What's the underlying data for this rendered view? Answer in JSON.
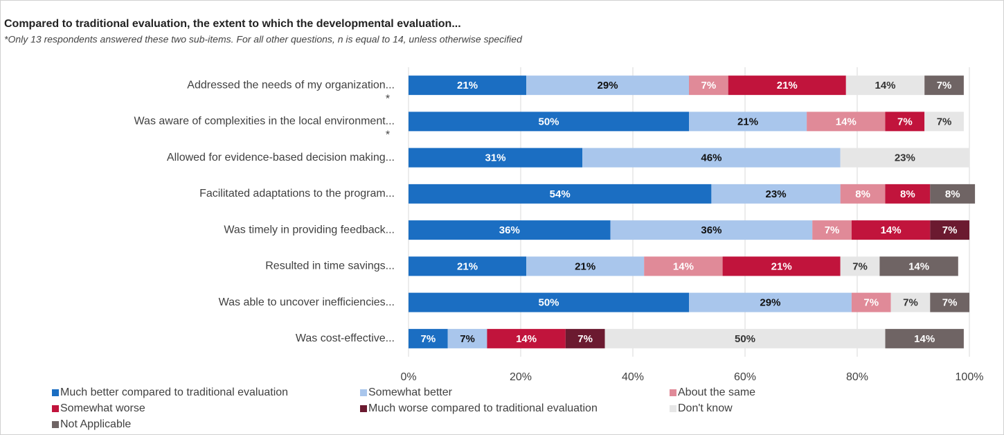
{
  "chart_data": {
    "type": "stacked_barh",
    "title": "Compared to traditional evaluation, the extent to which the developmental evaluation...",
    "subtitle": "*Only 13 respondents answered these two sub-items. For all other questions, n is equal to 14, unless otherwise specified",
    "categories": [
      "Addressed the needs of my organization...",
      "Was aware of complexities in the local environment...",
      "Allowed for evidence-based decision making...",
      "Facilitated adaptations to the program...",
      "Was timely in providing feedback...",
      "Resulted in time savings...",
      "Was able to uncover inefficiencies...",
      "Was cost-effective..."
    ],
    "category_notes": [
      "*",
      "*",
      null,
      null,
      null,
      null,
      null,
      null
    ],
    "series": [
      {
        "name": "Much better compared to traditional evaluation",
        "color": "#1b6ec2",
        "label_color": "#ffffff",
        "values": [
          21,
          50,
          31,
          54,
          36,
          21,
          50,
          7
        ]
      },
      {
        "name": "Somewhat better",
        "color": "#a9c6ec",
        "label_color": "#111111",
        "values": [
          29,
          21,
          46,
          23,
          36,
          21,
          29,
          7
        ]
      },
      {
        "name": "About the same",
        "color": "#e08a98",
        "label_color": "#ffffff",
        "values": [
          7,
          14,
          null,
          8,
          7,
          14,
          7,
          null
        ]
      },
      {
        "name": "Somewhat worse",
        "color": "#c1143c",
        "label_color": "#ffffff",
        "values": [
          21,
          7,
          null,
          8,
          14,
          21,
          null,
          14
        ]
      },
      {
        "name": "Much worse compared to traditional evaluation",
        "color": "#6b1a30",
        "label_color": "#ffffff",
        "values": [
          null,
          null,
          null,
          null,
          7,
          null,
          null,
          7
        ]
      },
      {
        "name": "Don't know",
        "color": "#e6e6e6",
        "label_color": "#333333",
        "values": [
          14,
          7,
          23,
          null,
          null,
          7,
          7,
          50
        ]
      },
      {
        "name": "Not Applicable",
        "color": "#6f6464",
        "label_color": "#ffffff",
        "values": [
          7,
          null,
          null,
          8,
          null,
          14,
          7,
          14
        ]
      }
    ],
    "value_labels": "percent",
    "xlim": [
      0,
      100
    ],
    "xticks": [
      {
        "value": 0,
        "label": "0%"
      },
      {
        "value": 20,
        "label": "20%"
      },
      {
        "value": 40,
        "label": "40%"
      },
      {
        "value": 60,
        "label": "60%"
      },
      {
        "value": 80,
        "label": "80%"
      },
      {
        "value": 100,
        "label": "100%"
      }
    ],
    "grid": true,
    "legend": "bottom"
  }
}
